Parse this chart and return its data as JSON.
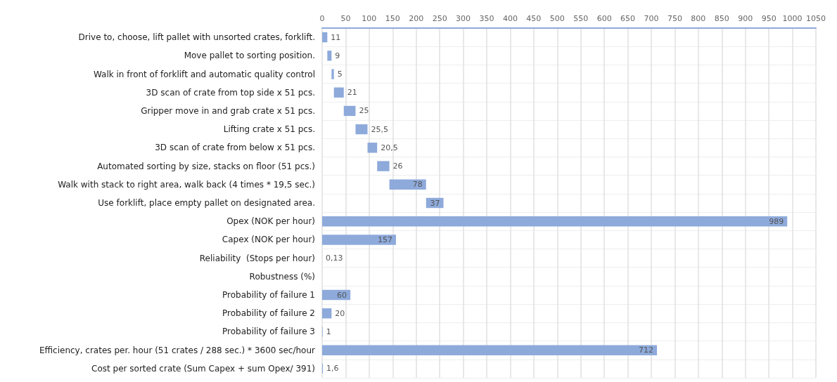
{
  "chart_data": {
    "type": "bar",
    "orientation": "horizontal",
    "categories": [
      "Drive to, choose, lift pallet with unsorted crates, forklift.",
      "Move pallet to sorting position.",
      "Walk in front of forklift and automatic quality control",
      "3D scan of crate from top side x 51 pcs.",
      "Gripper move in and grab crate x 51 pcs.",
      "Lifting crate x 51 pcs.",
      "3D scan of crate from below x 51 pcs.",
      "Automated sorting by size, stacks on floor (51 pcs.)",
      "Walk with stack to right area, walk back (4 times * 19,5 sec.)",
      "Use forklift, place empty pallet on designated area.",
      "Opex (NOK per hour)",
      "Capex (NOK per hour)",
      "Reliability  (Stops per hour)",
      "Robustness (%)",
      "Probability of failure 1",
      "Probability of failure 2",
      "Probability of failure 3",
      "Efficiency, crates per. hour (51 crates / 288 sec.) * 3600 sec/hour",
      "Cost per sorted crate (Sum Capex + sum Opex/ 391)"
    ],
    "values": [
      11,
      9,
      5,
      21,
      25,
      25.5,
      20.5,
      26,
      78,
      37,
      989,
      157,
      0.13,
      null,
      60,
      20,
      1,
      712,
      1.6
    ],
    "base": [
      0,
      11,
      20,
      25,
      46,
      71,
      96.5,
      117,
      143,
      221,
      0,
      0,
      0,
      null,
      0,
      0,
      0,
      0,
      0
    ],
    "value_labels": [
      "11",
      "9",
      "5",
      "21",
      "25",
      "25,5",
      "20,5",
      "26",
      "78",
      "37",
      "989",
      "157",
      "0,13",
      null,
      "60",
      "20",
      "1",
      "712",
      "1,6"
    ],
    "color": "#8eaadb",
    "xlim": [
      0,
      1050
    ],
    "xticks": [
      0,
      50,
      100,
      150,
      200,
      250,
      300,
      350,
      400,
      450,
      500,
      550,
      600,
      650,
      700,
      750,
      800,
      850,
      900,
      950,
      1000,
      1050
    ],
    "grid": true
  }
}
